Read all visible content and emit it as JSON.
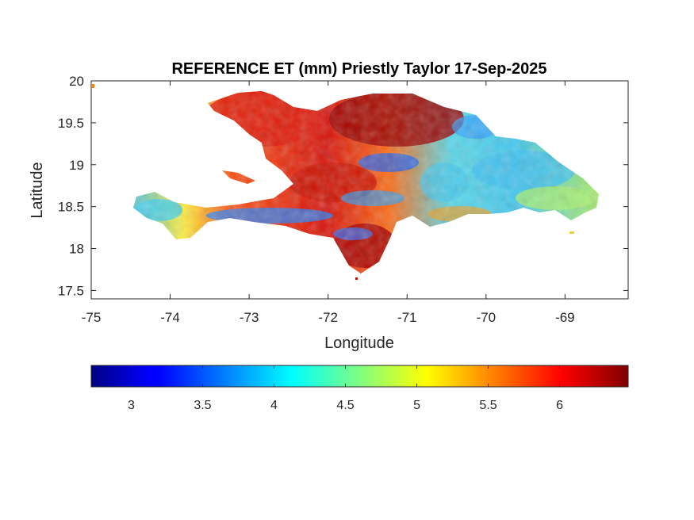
{
  "chart_data": {
    "type": "heatmap",
    "title": "REFERENCE ET (mm) Priestly Taylor 17-Sep-2025",
    "xlabel": "Longitude",
    "ylabel": "Latitude",
    "xlim": [
      -75,
      -68.2
    ],
    "ylim": [
      17.4,
      20
    ],
    "x_ticks": [
      -75,
      -74,
      -73,
      -72,
      -71,
      -70,
      -69
    ],
    "x_tick_labels": [
      "-75",
      "-74",
      "-73",
      "-72",
      "-71",
      "-70",
      "-69"
    ],
    "y_ticks": [
      17.5,
      18,
      18.5,
      19,
      19.5,
      20
    ],
    "y_tick_labels": [
      "17.5",
      "18",
      "18.5",
      "19",
      "19.5",
      "20"
    ],
    "colorbar": {
      "location": "bottom",
      "colormap": "jet",
      "range": [
        2.72,
        6.48
      ],
      "ticks": [
        3,
        3.5,
        4,
        4.5,
        5,
        5.5,
        6
      ],
      "tick_labels": [
        "3",
        "3.5",
        "4",
        "4.5",
        "5",
        "5.5",
        "6"
      ]
    },
    "regions": [
      {
        "lon": -73.9,
        "lat": 18.45,
        "value": 4.3
      },
      {
        "lon": -73.3,
        "lat": 18.35,
        "value": 4.0
      },
      {
        "lon": -72.5,
        "lat": 18.3,
        "value": 3.8
      },
      {
        "lon": -71.7,
        "lat": 18.0,
        "value": 6.2
      },
      {
        "lon": -72.5,
        "lat": 19.3,
        "value": 5.9
      },
      {
        "lon": -71.5,
        "lat": 19.6,
        "value": 6.3
      },
      {
        "lon": -70.8,
        "lat": 19.0,
        "value": 4.2
      },
      {
        "lon": -70.2,
        "lat": 19.5,
        "value": 4.1
      },
      {
        "lon": -69.5,
        "lat": 18.9,
        "value": 4.4
      },
      {
        "lon": -69.0,
        "lat": 18.5,
        "value": 4.6
      },
      {
        "lon": -70.5,
        "lat": 18.5,
        "value": 5.3
      }
    ]
  }
}
